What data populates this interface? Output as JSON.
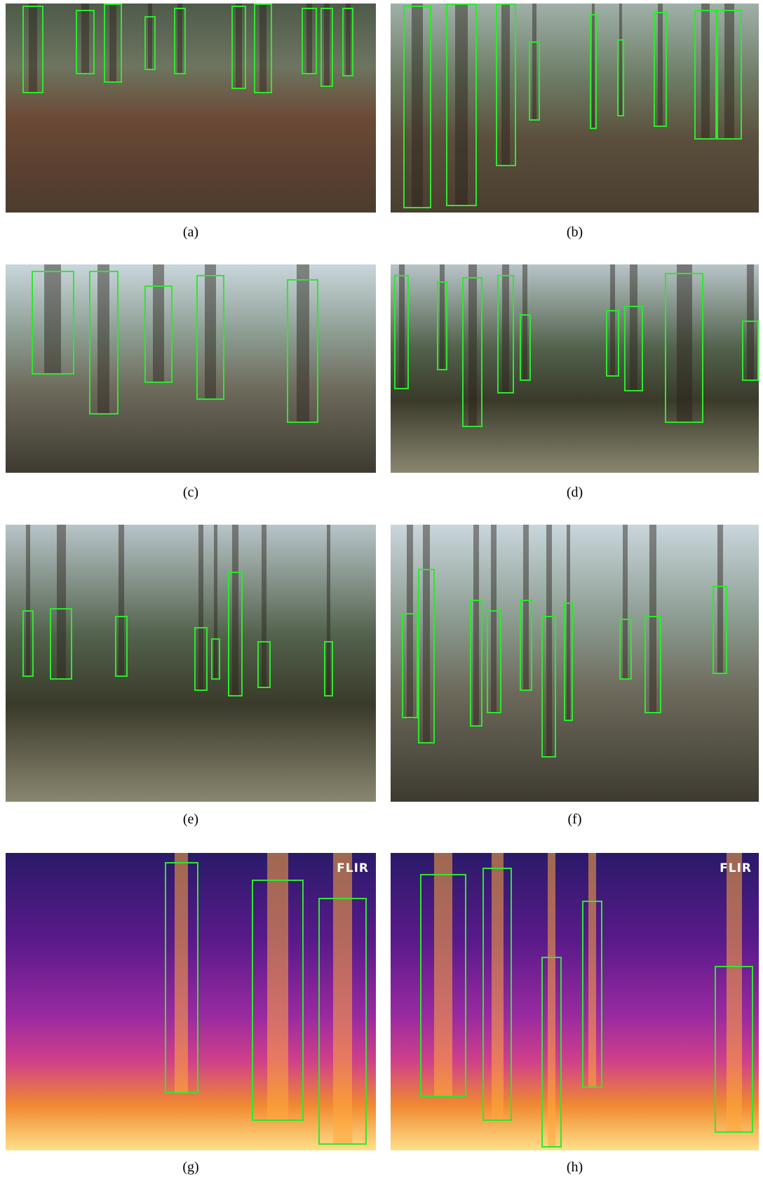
{
  "figure": {
    "panels": [
      {
        "caption": "(a)"
      },
      {
        "caption": "(b)"
      },
      {
        "caption": "(c)"
      },
      {
        "caption": "(d)"
      },
      {
        "caption": "(e)"
      },
      {
        "caption": "(f)"
      },
      {
        "caption": "(g)",
        "overlay": "FLIR"
      },
      {
        "caption": "(h)",
        "overlay": "FLIR"
      }
    ]
  }
}
